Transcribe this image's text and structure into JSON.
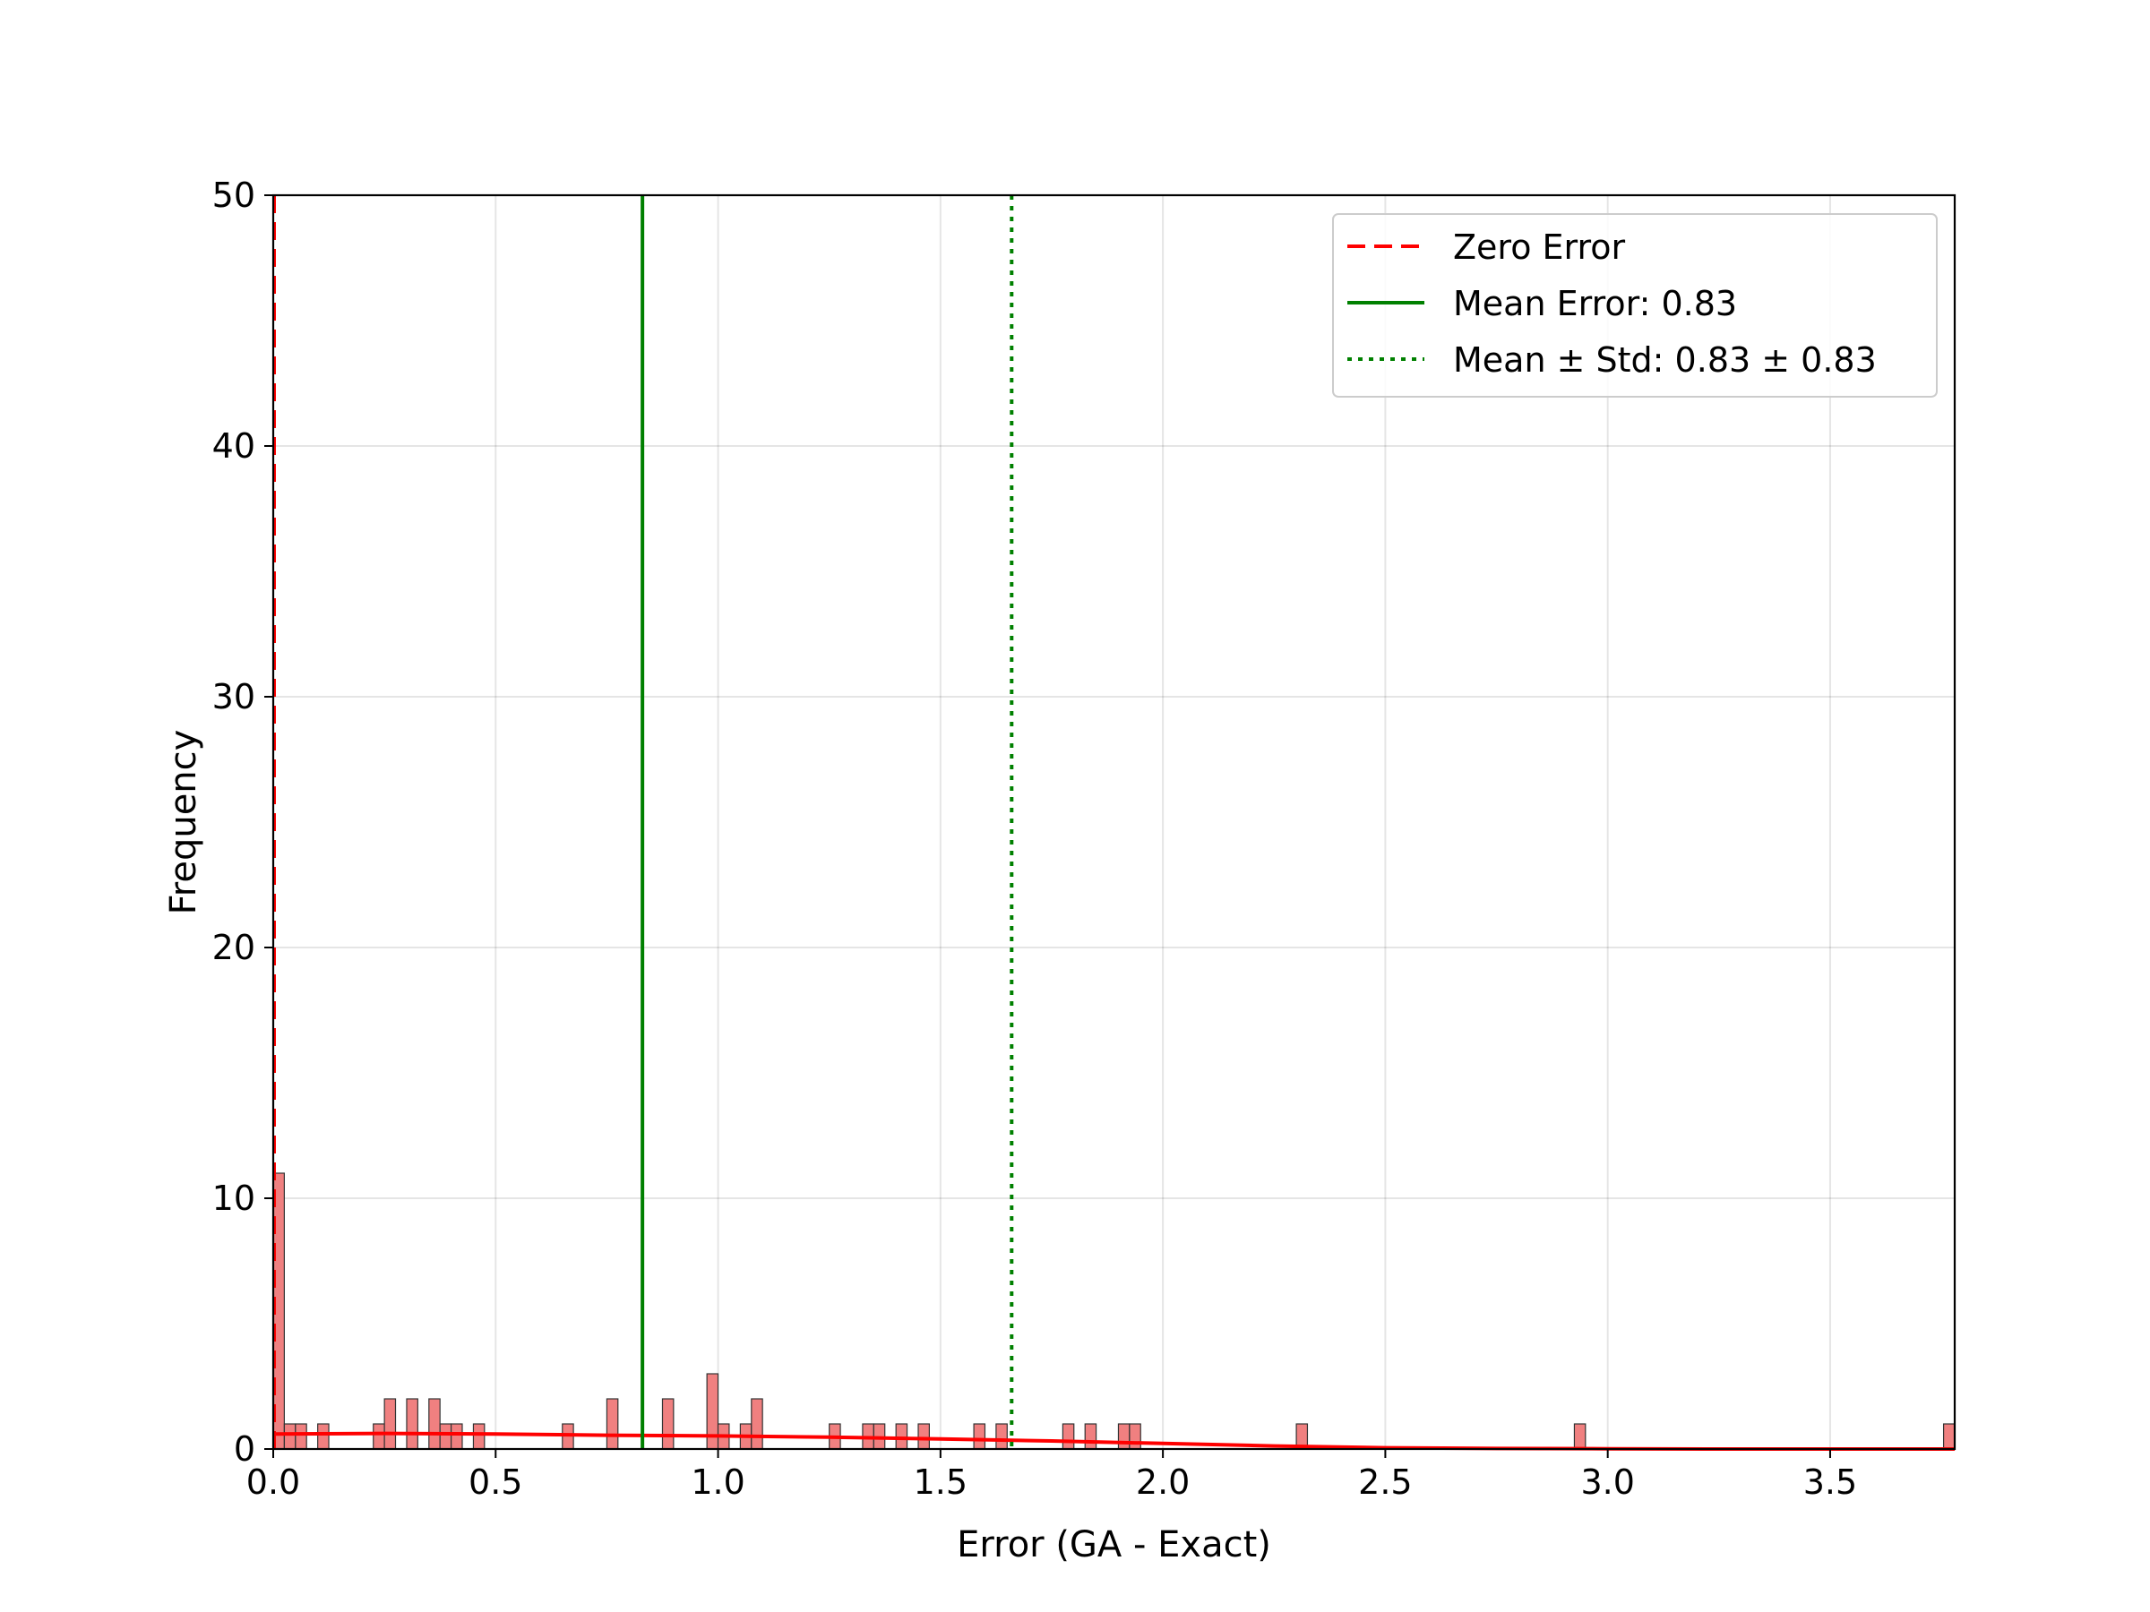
{
  "chart_data": {
    "type": "bar",
    "title": "",
    "xlabel": "Error (GA - Exact)",
    "ylabel": "Frequency",
    "xlim": [
      0,
      3.78
    ],
    "ylim": [
      0,
      50
    ],
    "x_ticks": [
      "0.0",
      "0.5",
      "1.0",
      "1.5",
      "2.0",
      "2.5",
      "3.0",
      "3.5"
    ],
    "y_ticks": [
      "0",
      "10",
      "20",
      "30",
      "40",
      "50"
    ],
    "grid": true,
    "bin_width": 0.0249,
    "histogram": {
      "bin_starts": [
        0.0,
        0.025,
        0.05,
        0.1,
        0.225,
        0.25,
        0.3,
        0.35,
        0.375,
        0.4,
        0.45,
        0.65,
        0.75,
        0.875,
        0.975,
        1.0,
        1.05,
        1.075,
        1.25,
        1.325,
        1.35,
        1.4,
        1.45,
        1.575,
        1.625,
        1.775,
        1.825,
        1.9,
        1.925,
        2.3,
        2.925,
        3.755
      ],
      "counts": [
        11,
        1,
        1,
        1,
        1,
        2,
        2,
        2,
        1,
        1,
        1,
        1,
        2,
        2,
        3,
        1,
        1,
        2,
        1,
        1,
        1,
        1,
        1,
        1,
        1,
        1,
        1,
        1,
        1,
        1,
        1,
        1
      ],
      "bar_color": "#f08080",
      "edge_color": "#333333"
    },
    "kde": {
      "color": "#ff0000",
      "x": [
        0.0,
        0.25,
        0.5,
        0.75,
        1.0,
        1.25,
        1.5,
        1.75,
        2.0,
        2.25,
        2.5,
        2.75,
        3.0,
        3.25,
        3.5,
        3.78
      ],
      "y": [
        0.6,
        0.62,
        0.6,
        0.55,
        0.52,
        0.47,
        0.4,
        0.32,
        0.22,
        0.12,
        0.05,
        0.02,
        0.01,
        0.0,
        0.0,
        0.0
      ]
    },
    "reference_lines": [
      {
        "name": "Zero Error",
        "x": 0.0,
        "color": "#ff0000",
        "style": "dashed"
      },
      {
        "name": "Mean Error: 0.83",
        "x": 0.83,
        "color": "#008000",
        "style": "solid"
      },
      {
        "name": "Mean ± Std: 0.83 ± 0.83",
        "x": 1.66,
        "color": "#008000",
        "style": "dotted"
      }
    ],
    "legend": {
      "position": "top-right",
      "entries": [
        {
          "label": "Zero Error",
          "color": "#ff0000",
          "style": "dashed"
        },
        {
          "label": "Mean Error: 0.83",
          "color": "#008000",
          "style": "solid"
        },
        {
          "label": "Mean ± Std: 0.83 ± 0.83",
          "color": "#008000",
          "style": "dotted"
        }
      ]
    }
  }
}
